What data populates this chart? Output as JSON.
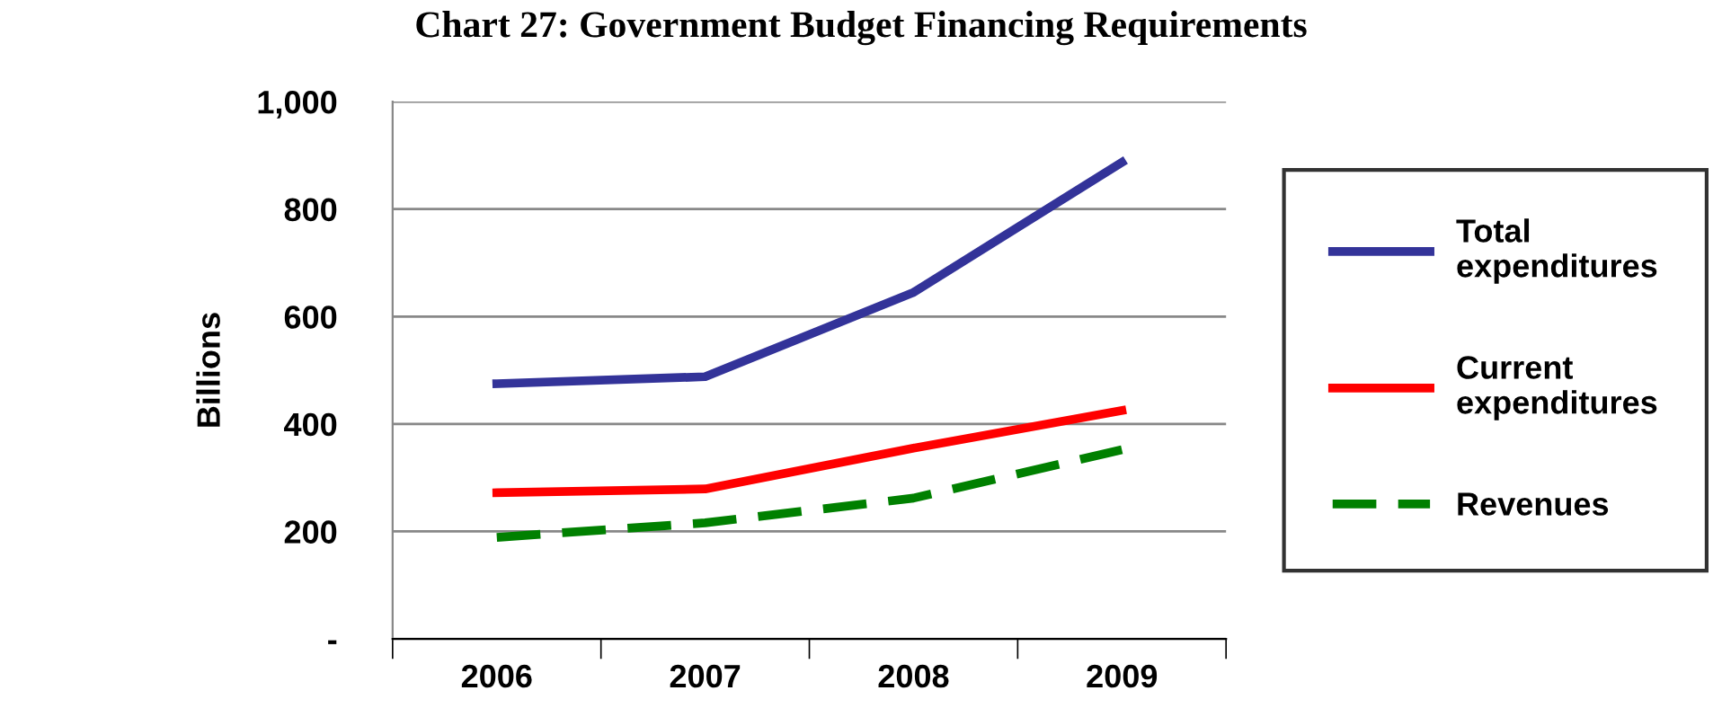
{
  "chart_data": {
    "type": "line",
    "title": "Chart 27: Government Budget Financing Requirements",
    "ylabel": "Billions",
    "categories": [
      "2006",
      "2007",
      "2008",
      "2009"
    ],
    "series": [
      {
        "name": "Total\nexpenditures",
        "color": "#333399",
        "values": [
          475,
          488,
          645,
          887
        ]
      },
      {
        "name": "Current\nexpenditures",
        "color": "#ff0000",
        "values": [
          272,
          279,
          355,
          425
        ]
      },
      {
        "name": "Revenues",
        "color": "#008000",
        "values": [
          189,
          216,
          262,
          352
        ],
        "line_style": "dashed"
      }
    ],
    "ylim": [
      0,
      1000
    ],
    "yticks": [
      {
        "value": 0,
        "label": "-"
      },
      200,
      400,
      600,
      800,
      "1,000"
    ],
    "grid": "y",
    "legend": "right",
    "marker": "none"
  }
}
